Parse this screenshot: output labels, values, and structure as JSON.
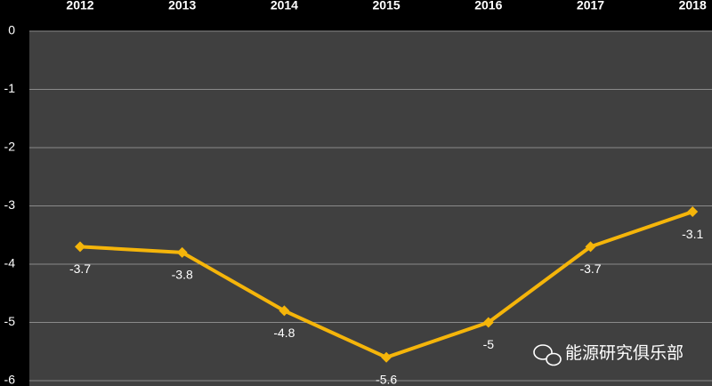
{
  "chart_data": {
    "type": "line",
    "categories": [
      "2012",
      "2013",
      "2014",
      "2015",
      "2016",
      "2017",
      "2018"
    ],
    "series": [
      {
        "color": "#f5b50a",
        "values": [
          -3.7,
          -3.8,
          -4.8,
          -5.6,
          -5,
          -3.7,
          -3.1
        ]
      }
    ],
    "ylim": [
      -6,
      0
    ],
    "yticks": [
      0,
      -1,
      -2,
      -3,
      -4,
      -5,
      -6
    ],
    "grid": true,
    "watermark": "能源研究俱乐部"
  }
}
